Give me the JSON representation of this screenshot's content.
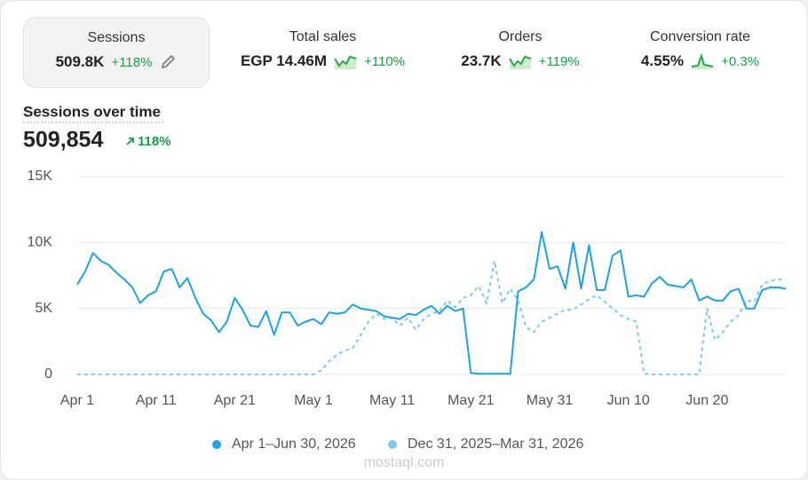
{
  "metrics": [
    {
      "label": "Sessions",
      "value": "509.8K",
      "change": "+118%"
    },
    {
      "label": "Total sales",
      "value": "EGP 14.46M",
      "change": "+110%"
    },
    {
      "label": "Orders",
      "value": "23.7K",
      "change": "+119%"
    },
    {
      "label": "Conversion rate",
      "value": "4.55%",
      "change": "+0.3%"
    }
  ],
  "watermark": "mostaql.com",
  "chart_data": {
    "type": "line",
    "title": "Sessions over time",
    "total": "509,854",
    "change": "118%",
    "categories": [
      "Apr 1",
      null,
      null,
      null,
      null,
      null,
      null,
      null,
      null,
      null,
      "Apr 11",
      null,
      null,
      null,
      null,
      null,
      null,
      null,
      null,
      null,
      "Apr 21",
      null,
      null,
      null,
      null,
      null,
      null,
      null,
      null,
      null,
      "May 1",
      null,
      null,
      null,
      null,
      null,
      null,
      null,
      null,
      null,
      "May 11",
      null,
      null,
      null,
      null,
      null,
      null,
      null,
      null,
      null,
      "May 21",
      null,
      null,
      null,
      null,
      null,
      null,
      null,
      null,
      null,
      "May 31",
      null,
      null,
      null,
      null,
      null,
      null,
      null,
      null,
      null,
      "Jun 10",
      null,
      null,
      null,
      null,
      null,
      null,
      null,
      null,
      null,
      "Jun 20",
      null,
      null,
      null,
      null,
      null,
      null,
      null,
      null,
      null,
      null
    ],
    "series": [
      {
        "name": "Apr 1–Jun 30, 2026",
        "color": "#1aa3e8",
        "dashed": false,
        "values": [
          6800,
          7800,
          9200,
          8600,
          8300,
          7700,
          7200,
          6600,
          5400,
          6000,
          6300,
          7800,
          8000,
          6600,
          7300,
          5800,
          4600,
          4100,
          3200,
          4000,
          5800,
          4900,
          3700,
          3600,
          4800,
          3000,
          4700,
          4700,
          3700,
          4000,
          4200,
          3800,
          4700,
          4600,
          4700,
          5300,
          5000,
          4900,
          4800,
          4400,
          4300,
          4200,
          4600,
          4500,
          4900,
          5200,
          4600,
          5200,
          4800,
          5000,
          100,
          50,
          50,
          50,
          50,
          50,
          6300,
          6600,
          7200,
          10800,
          8000,
          8200,
          6500,
          10000,
          6500,
          9800,
          6400,
          6400,
          9000,
          9400,
          5900,
          6000,
          5900,
          6900,
          7400,
          6800,
          6700,
          6600,
          7200,
          5600,
          5900,
          5600,
          5600,
          6300,
          6500,
          5000,
          5000,
          6400,
          6600,
          6600,
          6500
        ]
      },
      {
        "name": "Dec 31, 2025–Mar 31, 2026",
        "color": "#7dc8ec",
        "dashed": true,
        "values": [
          0,
          0,
          0,
          0,
          0,
          0,
          0,
          0,
          0,
          0,
          0,
          0,
          0,
          0,
          0,
          0,
          0,
          0,
          0,
          0,
          0,
          0,
          0,
          0,
          0,
          0,
          0,
          0,
          0,
          0,
          0,
          300,
          1000,
          1500,
          1800,
          2000,
          3000,
          4000,
          4600,
          4200,
          4300,
          3700,
          4300,
          3400,
          4200,
          4600,
          4800,
          5600,
          5100,
          5800,
          6000,
          6700,
          5400,
          8600,
          5400,
          6500,
          5600,
          3600,
          3200,
          4000,
          4300,
          4600,
          4900,
          4900,
          5300,
          5700,
          6000,
          5500,
          5000,
          4500,
          4200,
          4000,
          50,
          0,
          0,
          0,
          0,
          0,
          0,
          0,
          5000,
          2600,
          3200,
          4000,
          4500,
          5600,
          5500,
          6800,
          7100,
          7200,
          7200
        ]
      }
    ],
    "ylim": [
      0,
      15000
    ],
    "yticks": [
      0,
      {
        "value": 5000,
        "label": "5K"
      },
      {
        "value": 10000,
        "label": "10K"
      },
      {
        "value": 15000,
        "label": "15K"
      }
    ],
    "grid": true
  }
}
